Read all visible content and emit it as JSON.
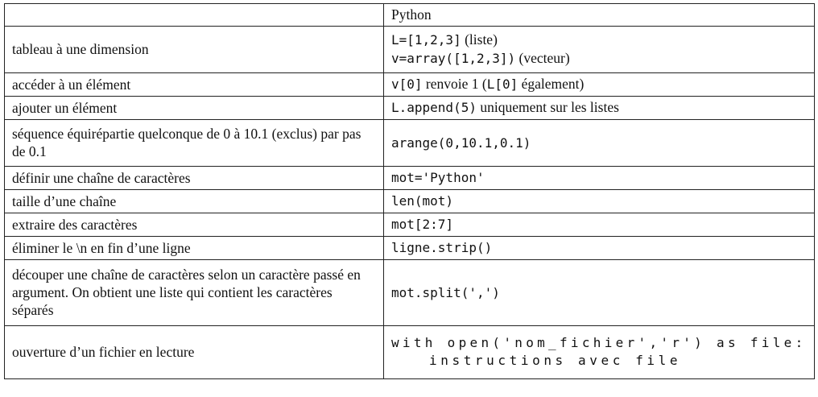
{
  "header": {
    "col1": "",
    "col2": "Python"
  },
  "rows": [
    {
      "desc": "tableau à une dimension",
      "code_lines": [
        {
          "code": "L=[1,2,3]",
          "text": " (liste)"
        },
        {
          "code": "v=array([1,2,3])",
          "text": " (vecteur)"
        }
      ]
    },
    {
      "desc": "accéder à un élément",
      "parts": [
        {
          "code": "v[0]"
        },
        {
          "text": " renvoie 1 ("
        },
        {
          "code": "L[0]"
        },
        {
          "text": " également)"
        }
      ]
    },
    {
      "desc": "ajouter un élément",
      "parts": [
        {
          "code": "L.append(5)"
        },
        {
          "text": " uniquement sur les listes"
        }
      ]
    },
    {
      "desc": "séquence équirépartie quelconque de 0 à 10.1 (exclus) par pas de 0.1",
      "code": "arange(0,10.1,0.1)"
    },
    {
      "desc": "définir une chaîne de caractères",
      "code": "mot='Python'"
    },
    {
      "desc": "taille d’une chaîne",
      "code": "len(mot)"
    },
    {
      "desc": "extraire des caractères",
      "code": "mot[2:7]"
    },
    {
      "desc": "éliminer le \\n en fin d’une ligne",
      "code": "ligne.strip()"
    },
    {
      "desc": "découper une chaîne de caractères selon un caractère passé en argument. On obtient une liste qui contient les caractères séparés",
      "code": "mot.split(',')"
    },
    {
      "desc": "ouverture d’un fichier en lecture",
      "code_block": [
        "with open('nom_fichier','r') as file:",
        "instructions avec file"
      ]
    }
  ]
}
